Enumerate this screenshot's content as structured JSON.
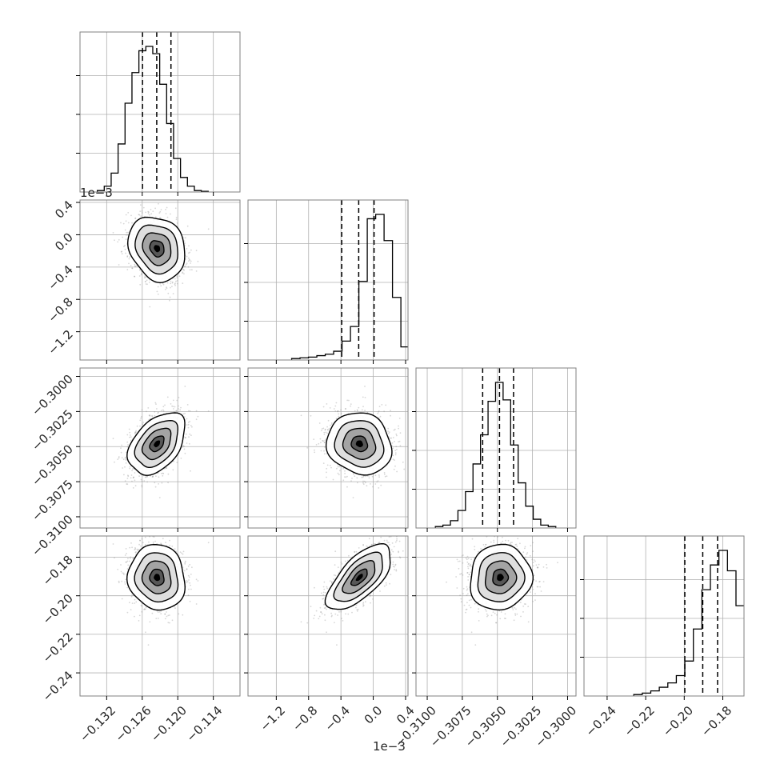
{
  "chart_data": {
    "type": "corner",
    "grid": true,
    "colors": {
      "line": "#000000",
      "grid": "#b0b0b0",
      "scatter": "#8c8c8c",
      "frame": "#808080"
    },
    "parameters": [
      {
        "range": [
          -0.1365,
          -0.1095
        ],
        "ticks": [
          -0.132,
          -0.126,
          -0.12,
          -0.114
        ],
        "tick_labels": [
          "−0.132",
          "−0.126",
          "−0.120",
          "−0.114"
        ],
        "offset_text": "",
        "mean": -0.1235,
        "sd": 0.0024,
        "quantiles": [
          -0.12595,
          -0.12355,
          -0.12115
        ],
        "hist": [
          0.01,
          0.04,
          0.13,
          0.33,
          0.61,
          0.82,
          0.97,
          1.0,
          0.95,
          0.74,
          0.47,
          0.23,
          0.1,
          0.04,
          0.01,
          0.005
        ]
      },
      {
        "range": [
          -1.55,
          0.43
        ],
        "ticks": [
          -1.2,
          -0.8,
          -0.4,
          0.0,
          0.4
        ],
        "tick_labels": [
          "−1.2",
          "−0.8",
          "−0.4",
          "0.0",
          "0.4"
        ],
        "offset_text": "1e−3",
        "mean": -0.17,
        "sd": 0.2,
        "quantiles": [
          -0.39,
          -0.18,
          0.01
        ],
        "hist": [
          0.01,
          0.015,
          0.02,
          0.03,
          0.04,
          0.06,
          0.13,
          0.23,
          0.54,
          0.97,
          1.0,
          0.82,
          0.43,
          0.09,
          0.02
        ]
      },
      {
        "range": [
          -0.3108,
          -0.2994
        ],
        "ticks": [
          -0.31,
          -0.3075,
          -0.305,
          -0.3025,
          -0.3
        ],
        "tick_labels": [
          "−0.3100",
          "−0.3075",
          "−0.3050",
          "−0.3025",
          "−0.3000"
        ],
        "offset_text": "",
        "mean": -0.3048,
        "sd": 0.0011,
        "quantiles": [
          -0.30605,
          -0.30485,
          -0.30385
        ],
        "hist": [
          0.01,
          0.02,
          0.05,
          0.12,
          0.25,
          0.44,
          0.64,
          0.87,
          1.0,
          0.88,
          0.57,
          0.31,
          0.15,
          0.06,
          0.02,
          0.01
        ]
      },
      {
        "range": [
          -0.252,
          -0.169
        ],
        "ticks": [
          -0.24,
          -0.22,
          -0.2,
          -0.18
        ],
        "tick_labels": [
          "−0.24",
          "−0.22",
          "−0.20",
          "−0.18"
        ],
        "offset_text": "",
        "mean": -0.1905,
        "sd": 0.0085,
        "quantiles": [
          -0.1997,
          -0.1904,
          -0.1827
        ],
        "hist": [
          0.01,
          0.02,
          0.035,
          0.06,
          0.09,
          0.14,
          0.24,
          0.46,
          0.73,
          0.9,
          1.0,
          0.86,
          0.62,
          0.27,
          0.05
        ]
      }
    ],
    "correlations": [
      [
        1,
        0,
        0,
        0
      ],
      [
        -0.25,
        1,
        0,
        0
      ],
      [
        0.45,
        -0.1,
        1,
        0
      ],
      [
        0.08,
        0.7,
        0.1,
        1
      ]
    ],
    "scatter_samples": 1400,
    "contour_levels_sigma": [
      0.5,
      1.0,
      1.5,
      2.0
    ]
  }
}
